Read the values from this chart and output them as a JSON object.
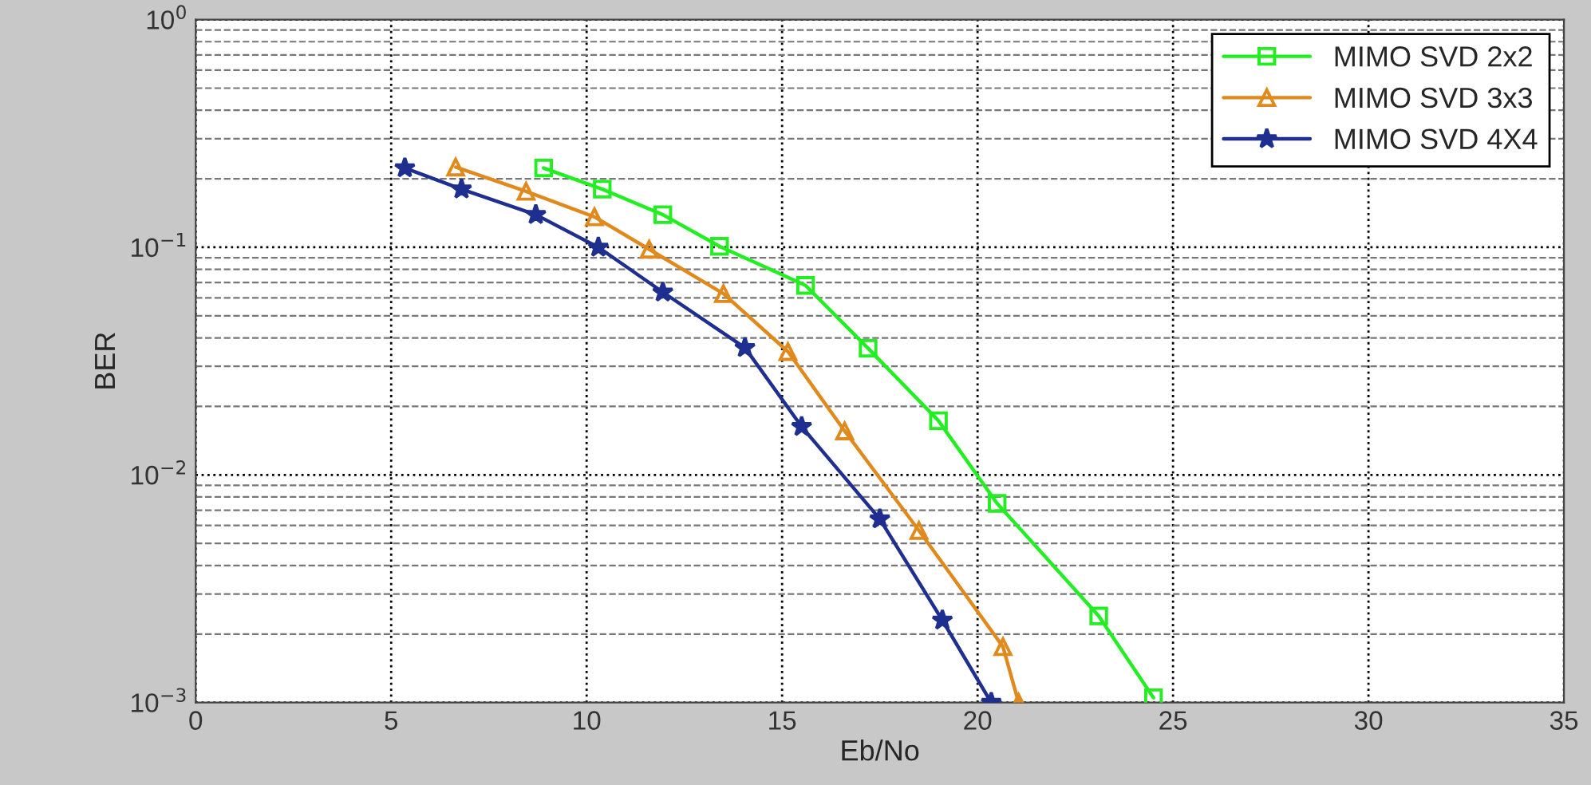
{
  "chart_data": {
    "type": "line",
    "xlabel": "Eb/No",
    "ylabel": "BER",
    "log": "y",
    "xlim": [
      0,
      35
    ],
    "xticks": [
      0,
      5,
      10,
      15,
      20,
      25,
      30,
      35
    ],
    "ylim": [
      0.001,
      1
    ],
    "yticks": [
      {
        "value": 0.001,
        "label": "10$^{−3}$"
      },
      {
        "value": 0.01,
        "label": "10$^{−2}$"
      },
      {
        "value": 0.1,
        "label": "10$^{−1}$"
      },
      {
        "value": 1,
        "label": "10$^{0}$"
      }
    ],
    "grid": true,
    "legend": "top right",
    "series": [
      {
        "name": "MIMO SVD 2x2",
        "color": "#22ee22",
        "marker": "square",
        "x": [
          8.9,
          10.4,
          11.95,
          13.4,
          15.6,
          17.2,
          19.0,
          20.5,
          23.1,
          24.5
        ],
        "values": [
          0.223,
          0.18,
          0.139,
          0.101,
          0.068,
          0.036,
          0.0173,
          0.0075,
          0.0024,
          0.00105
        ]
      },
      {
        "name": "MIMO SVD 3x3",
        "color": "#e08a1e",
        "marker": "triangle",
        "x": [
          6.65,
          8.45,
          10.2,
          11.6,
          13.5,
          15.15,
          16.6,
          18.5,
          20.65,
          21.05
        ],
        "values": [
          0.225,
          0.176,
          0.136,
          0.098,
          0.0625,
          0.0348,
          0.0156,
          0.0057,
          0.00176,
          0.001
        ]
      },
      {
        "name": "MIMO SVD 4X4",
        "color": "#1f2f8f",
        "marker": "star",
        "x": [
          5.35,
          6.8,
          8.7,
          10.3,
          11.95,
          14.05,
          15.5,
          17.5,
          19.1,
          20.35
        ],
        "values": [
          0.223,
          0.18,
          0.139,
          0.1,
          0.0635,
          0.0362,
          0.0163,
          0.0064,
          0.0023,
          0.001
        ]
      }
    ]
  }
}
